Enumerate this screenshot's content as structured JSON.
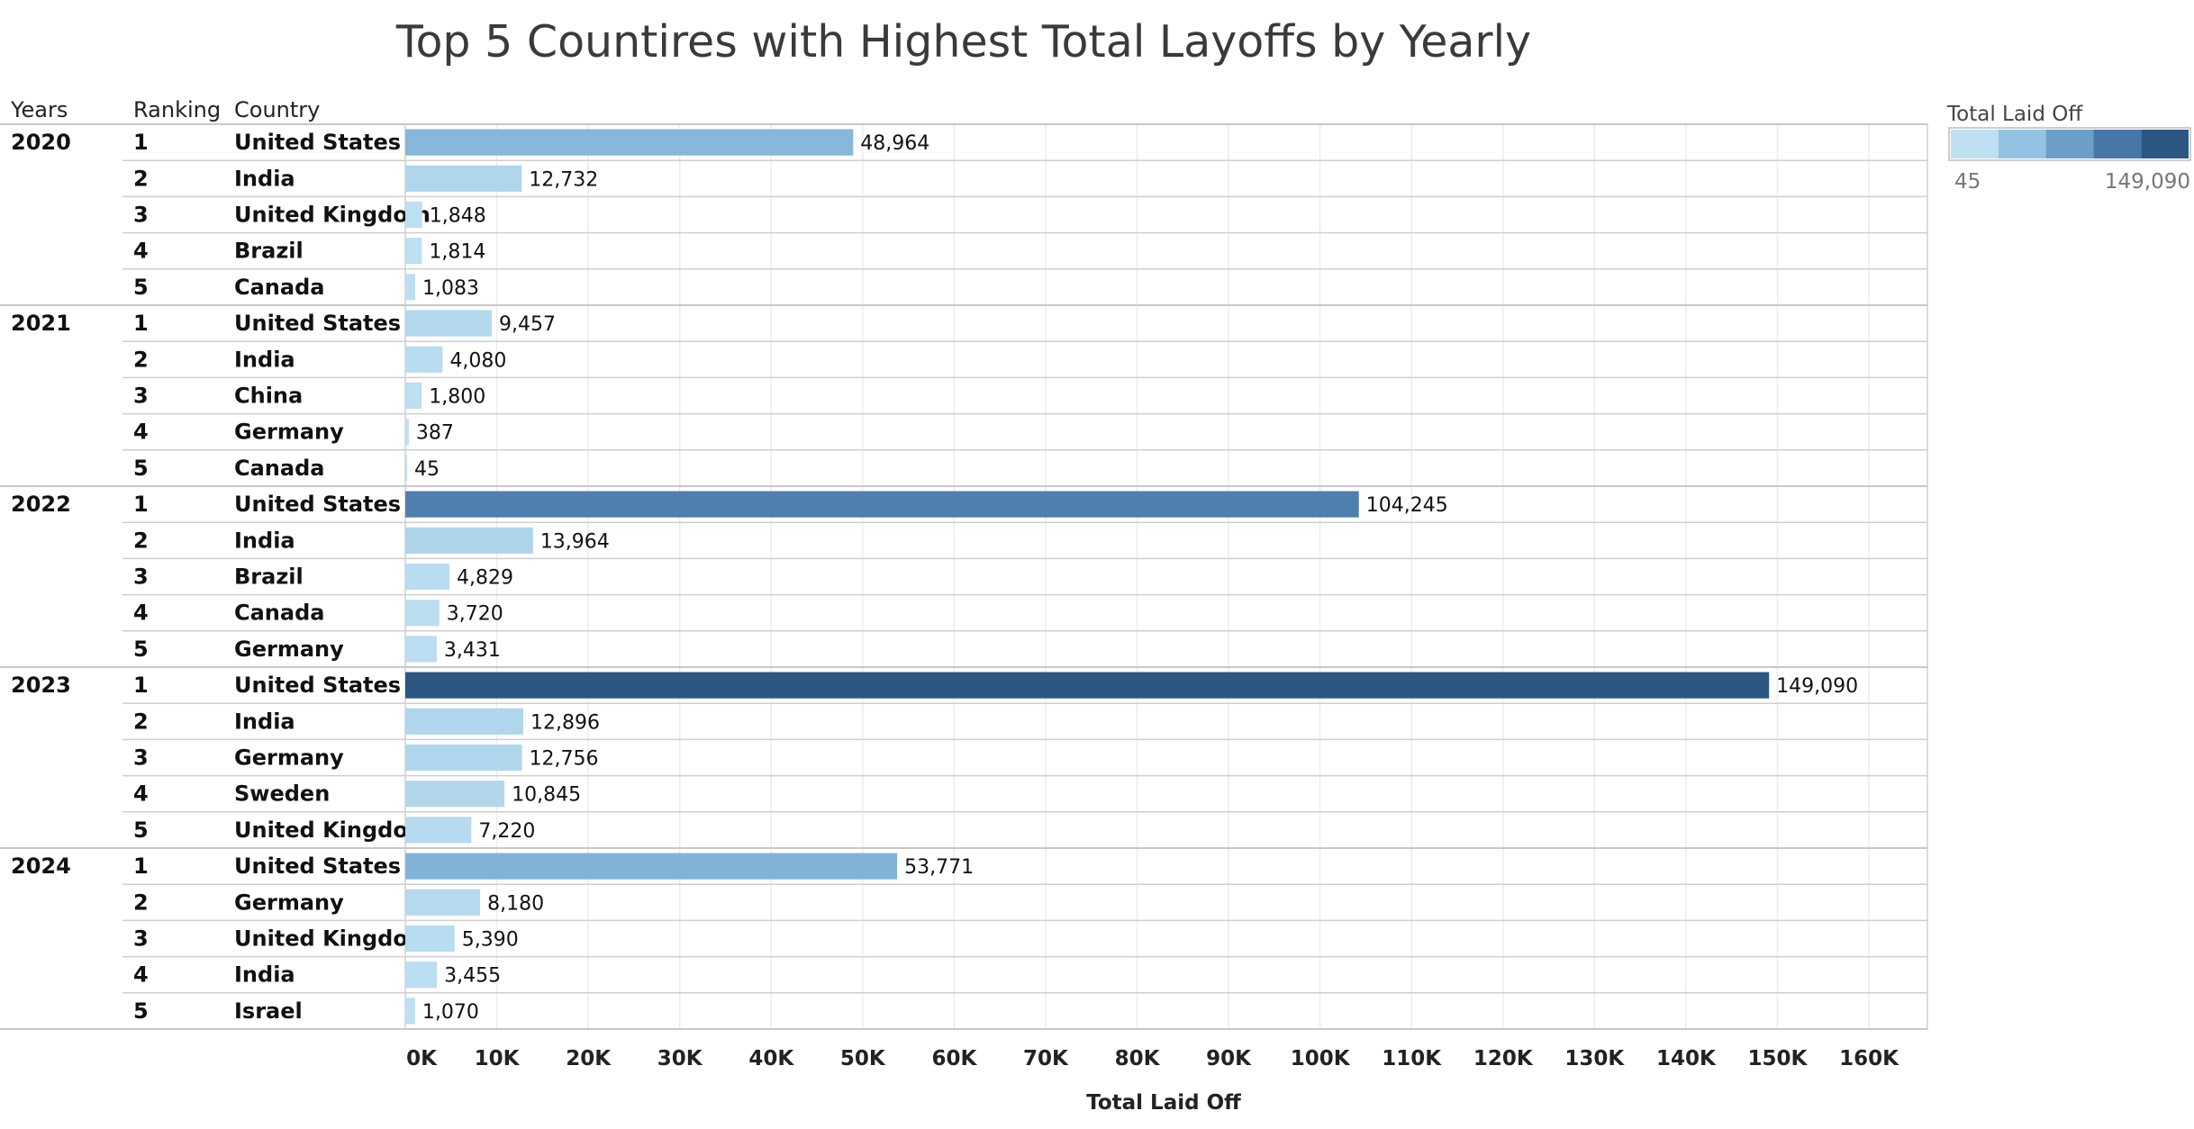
{
  "chart_data": {
    "type": "bar",
    "title": "Top 5 Countires with Highest Total Layoffs by Yearly",
    "column_headers": {
      "years": "Years",
      "ranking": "Ranking",
      "country": "Country"
    },
    "xlabel": "Total Laid Off",
    "xlim": [
      0,
      165000
    ],
    "x_ticks": [
      0,
      10000,
      20000,
      30000,
      40000,
      50000,
      60000,
      70000,
      80000,
      90000,
      100000,
      110000,
      120000,
      130000,
      140000,
      150000,
      160000
    ],
    "x_tick_labels": [
      "0K",
      "10K",
      "20K",
      "30K",
      "40K",
      "50K",
      "60K",
      "70K",
      "80K",
      "90K",
      "100K",
      "110K",
      "120K",
      "130K",
      "140K",
      "150K",
      "160K"
    ],
    "grid": "vertical",
    "legend": {
      "title": "Total Laid Off",
      "min_label": "45",
      "max_label": "149,090",
      "min": 45,
      "max": 149090,
      "placement": "top-right",
      "colors": [
        "#bee0f2",
        "#94c2e2",
        "#6b9fc9",
        "#4777a8",
        "#2c5782"
      ]
    },
    "groups": [
      {
        "year": "2020",
        "rows": [
          {
            "rank": "1",
            "country": "United States",
            "value": 48964,
            "label": "48,964"
          },
          {
            "rank": "2",
            "country": "India",
            "value": 12732,
            "label": "12,732"
          },
          {
            "rank": "3",
            "country": "United Kingdom",
            "value": 1848,
            "label": "1,848"
          },
          {
            "rank": "4",
            "country": "Brazil",
            "value": 1814,
            "label": "1,814"
          },
          {
            "rank": "5",
            "country": "Canada",
            "value": 1083,
            "label": "1,083"
          }
        ]
      },
      {
        "year": "2021",
        "rows": [
          {
            "rank": "1",
            "country": "United States",
            "value": 9457,
            "label": "9,457"
          },
          {
            "rank": "2",
            "country": "India",
            "value": 4080,
            "label": "4,080"
          },
          {
            "rank": "3",
            "country": "China",
            "value": 1800,
            "label": "1,800"
          },
          {
            "rank": "4",
            "country": "Germany",
            "value": 387,
            "label": "387"
          },
          {
            "rank": "5",
            "country": "Canada",
            "value": 45,
            "label": "45"
          }
        ]
      },
      {
        "year": "2022",
        "rows": [
          {
            "rank": "1",
            "country": "United States",
            "value": 104245,
            "label": "104,245"
          },
          {
            "rank": "2",
            "country": "India",
            "value": 13964,
            "label": "13,964"
          },
          {
            "rank": "3",
            "country": "Brazil",
            "value": 4829,
            "label": "4,829"
          },
          {
            "rank": "4",
            "country": "Canada",
            "value": 3720,
            "label": "3,720"
          },
          {
            "rank": "5",
            "country": "Germany",
            "value": 3431,
            "label": "3,431"
          }
        ]
      },
      {
        "year": "2023",
        "rows": [
          {
            "rank": "1",
            "country": "United States",
            "value": 149090,
            "label": "149,090"
          },
          {
            "rank": "2",
            "country": "India",
            "value": 12896,
            "label": "12,896"
          },
          {
            "rank": "3",
            "country": "Germany",
            "value": 12756,
            "label": "12,756"
          },
          {
            "rank": "4",
            "country": "Sweden",
            "value": 10845,
            "label": "10,845"
          },
          {
            "rank": "5",
            "country": "United Kingdom",
            "value": 7220,
            "label": "7,220"
          }
        ]
      },
      {
        "year": "2024",
        "rows": [
          {
            "rank": "1",
            "country": "United States",
            "value": 53771,
            "label": "53,771"
          },
          {
            "rank": "2",
            "country": "Germany",
            "value": 8180,
            "label": "8,180"
          },
          {
            "rank": "3",
            "country": "United Kingdom",
            "value": 5390,
            "label": "5,390"
          },
          {
            "rank": "4",
            "country": "India",
            "value": 3455,
            "label": "3,455"
          },
          {
            "rank": "5",
            "country": "Israel",
            "value": 1070,
            "label": "1,070"
          }
        ]
      }
    ]
  }
}
